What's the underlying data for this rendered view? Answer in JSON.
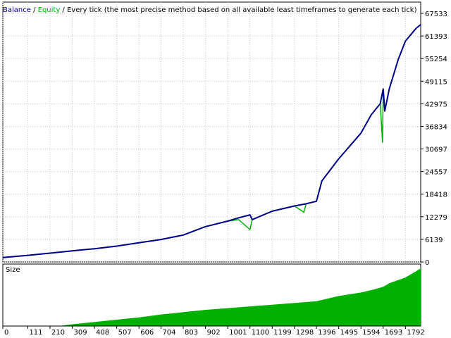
{
  "legend": {
    "balance_label": "Balance",
    "separator": " / ",
    "equity_label": "Equity",
    "description": " / Every tick (the most precise method based on all available least timeframes to generate each tick)"
  },
  "colors": {
    "balance": "#00008B",
    "equity": "#00B000",
    "size_bars": "#00B000",
    "frame": "#000000",
    "grid": "#c8c8c8",
    "background": "#ffffff"
  },
  "size_panel": {
    "label": "Size"
  },
  "chart_data": [
    {
      "type": "line",
      "title": "",
      "xlabel": "",
      "ylabel": "",
      "x_ticks": [
        0,
        111,
        210,
        309,
        408,
        507,
        606,
        704,
        803,
        902,
        1001,
        1100,
        1199,
        1298,
        1396,
        1495,
        1594,
        1693,
        1792
      ],
      "y_ticks": [
        0,
        6139,
        12279,
        18418,
        24557,
        30697,
        36834,
        42975,
        49115,
        55254,
        61393,
        67533
      ],
      "xlim": [
        0,
        1860
      ],
      "ylim": [
        0,
        67533
      ],
      "grid": true,
      "legend_position": "top-left",
      "series": [
        {
          "name": "Balance",
          "x": [
            0,
            111,
            210,
            309,
            408,
            507,
            606,
            704,
            803,
            902,
            1001,
            1050,
            1100,
            1110,
            1199,
            1298,
            1350,
            1396,
            1420,
            1495,
            1594,
            1640,
            1680,
            1693,
            1700,
            1720,
            1760,
            1792,
            1840,
            1860
          ],
          "y": [
            1200,
            1800,
            2400,
            3000,
            3600,
            4300,
            5200,
            6100,
            7300,
            9600,
            11100,
            12000,
            12800,
            11500,
            13800,
            15200,
            15800,
            16500,
            22000,
            28000,
            35000,
            40000,
            43000,
            47000,
            41000,
            47000,
            55000,
            60000,
            63500,
            64500
          ]
        },
        {
          "name": "Equity",
          "x": [
            0,
            111,
            210,
            309,
            408,
            507,
            606,
            704,
            803,
            902,
            1001,
            1050,
            1100,
            1110,
            1199,
            1298,
            1340,
            1350,
            1396,
            1420,
            1495,
            1594,
            1640,
            1680,
            1690,
            1693,
            1700,
            1720,
            1760,
            1792,
            1840,
            1860
          ],
          "y": [
            1200,
            1800,
            2400,
            3000,
            3600,
            4300,
            5200,
            6100,
            7300,
            9600,
            11100,
            11500,
            8800,
            11500,
            13800,
            15200,
            13500,
            15800,
            16500,
            22000,
            28000,
            35000,
            40000,
            43000,
            32500,
            47000,
            41000,
            47000,
            55000,
            60000,
            63500,
            64500
          ]
        }
      ]
    },
    {
      "type": "bar",
      "title": "Size",
      "x_ticks": [
        0,
        111,
        210,
        309,
        408,
        507,
        606,
        704,
        803,
        902,
        1001,
        1100,
        1199,
        1298,
        1396,
        1495,
        1594,
        1693,
        1792
      ],
      "xlim": [
        0,
        1860
      ],
      "ylim": [
        0,
        100
      ],
      "x": [
        0,
        250,
        309,
        408,
        507,
        606,
        704,
        803,
        902,
        1001,
        1100,
        1199,
        1298,
        1396,
        1440,
        1495,
        1594,
        1650,
        1693,
        1720,
        1792,
        1840,
        1860
      ],
      "values": [
        0,
        0,
        3,
        7,
        11,
        15,
        20,
        24,
        28,
        31,
        34,
        37,
        40,
        43,
        47,
        52,
        58,
        63,
        68,
        74,
        84,
        95,
        100
      ]
    }
  ]
}
